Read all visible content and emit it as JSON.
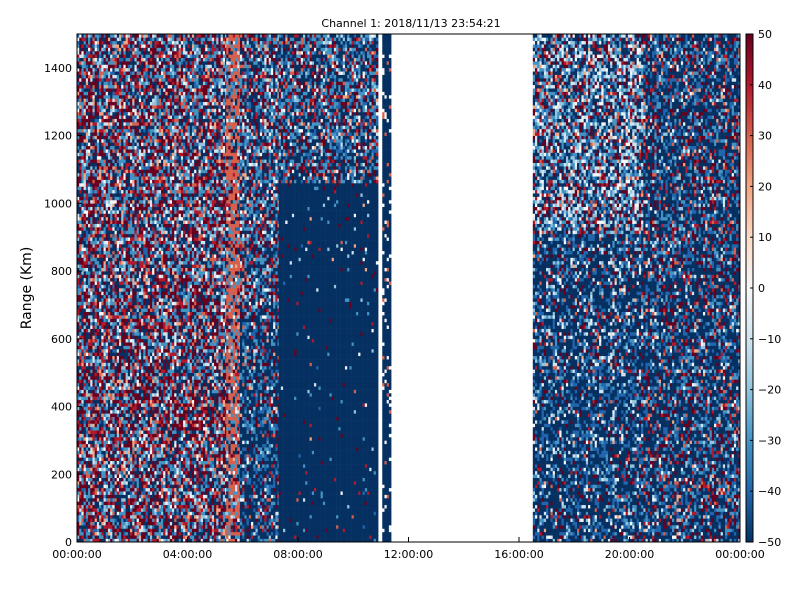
{
  "chart_data": {
    "type": "heatmap",
    "title": "Channel 1: 2018/11/13 23:54:21",
    "xlabel": "",
    "ylabel": "Range (Km)",
    "x_ticks": [
      "00:00:00",
      "04:00:00",
      "08:00:00",
      "12:00:00",
      "16:00:00",
      "20:00:00",
      "00:00:00"
    ],
    "x_tick_hours": [
      0,
      4,
      8,
      12,
      16,
      20,
      24
    ],
    "xlim_hours": [
      0,
      24
    ],
    "y_ticks": [
      0,
      200,
      400,
      600,
      800,
      1000,
      1200,
      1400
    ],
    "ylim": [
      0,
      1500
    ],
    "colorbar": {
      "ticks": [
        50,
        40,
        30,
        20,
        10,
        0,
        -10,
        -20,
        -30,
        -40,
        -50
      ],
      "range": [
        -50,
        50
      ],
      "colormap": "RdBu_r",
      "colors": [
        "#053061",
        "#2166ac",
        "#4393c3",
        "#92c5de",
        "#d1e5f0",
        "#f7f7f7",
        "#fddbc7",
        "#f4a582",
        "#d6604d",
        "#b2182b",
        "#67001f"
      ]
    },
    "grid": false,
    "data_description": "Noisy signal heatmap; dense alternating high/low noise from 00:00 to about 05:40, strong vertical band near 05:30, low values (-50) dominating between about 07:20 and 11:00 below 1050 Km, narrow data column near 11:10, no data from about 11:20 to 16:30, mixed values from 16:30 to 24:00 with lighter values around 18:00-19:30 and noisier values after 21:00.",
    "segments": [
      {
        "start_hour": 0.0,
        "end_hour": 5.4,
        "pattern": "noisy"
      },
      {
        "start_hour": 5.4,
        "end_hour": 5.9,
        "pattern": "stripe"
      },
      {
        "start_hour": 5.9,
        "end_hour": 7.3,
        "pattern": "mixed-low"
      },
      {
        "start_hour": 7.3,
        "end_hour": 10.9,
        "pattern": "low-with-noisy-top"
      },
      {
        "start_hour": 11.05,
        "end_hour": 11.3,
        "pattern": "narrow-column"
      },
      {
        "start_hour": 16.5,
        "end_hour": 20.5,
        "pattern": "mixed-light"
      },
      {
        "start_hour": 20.5,
        "end_hour": 24.0,
        "pattern": "noisy-low"
      }
    ]
  }
}
